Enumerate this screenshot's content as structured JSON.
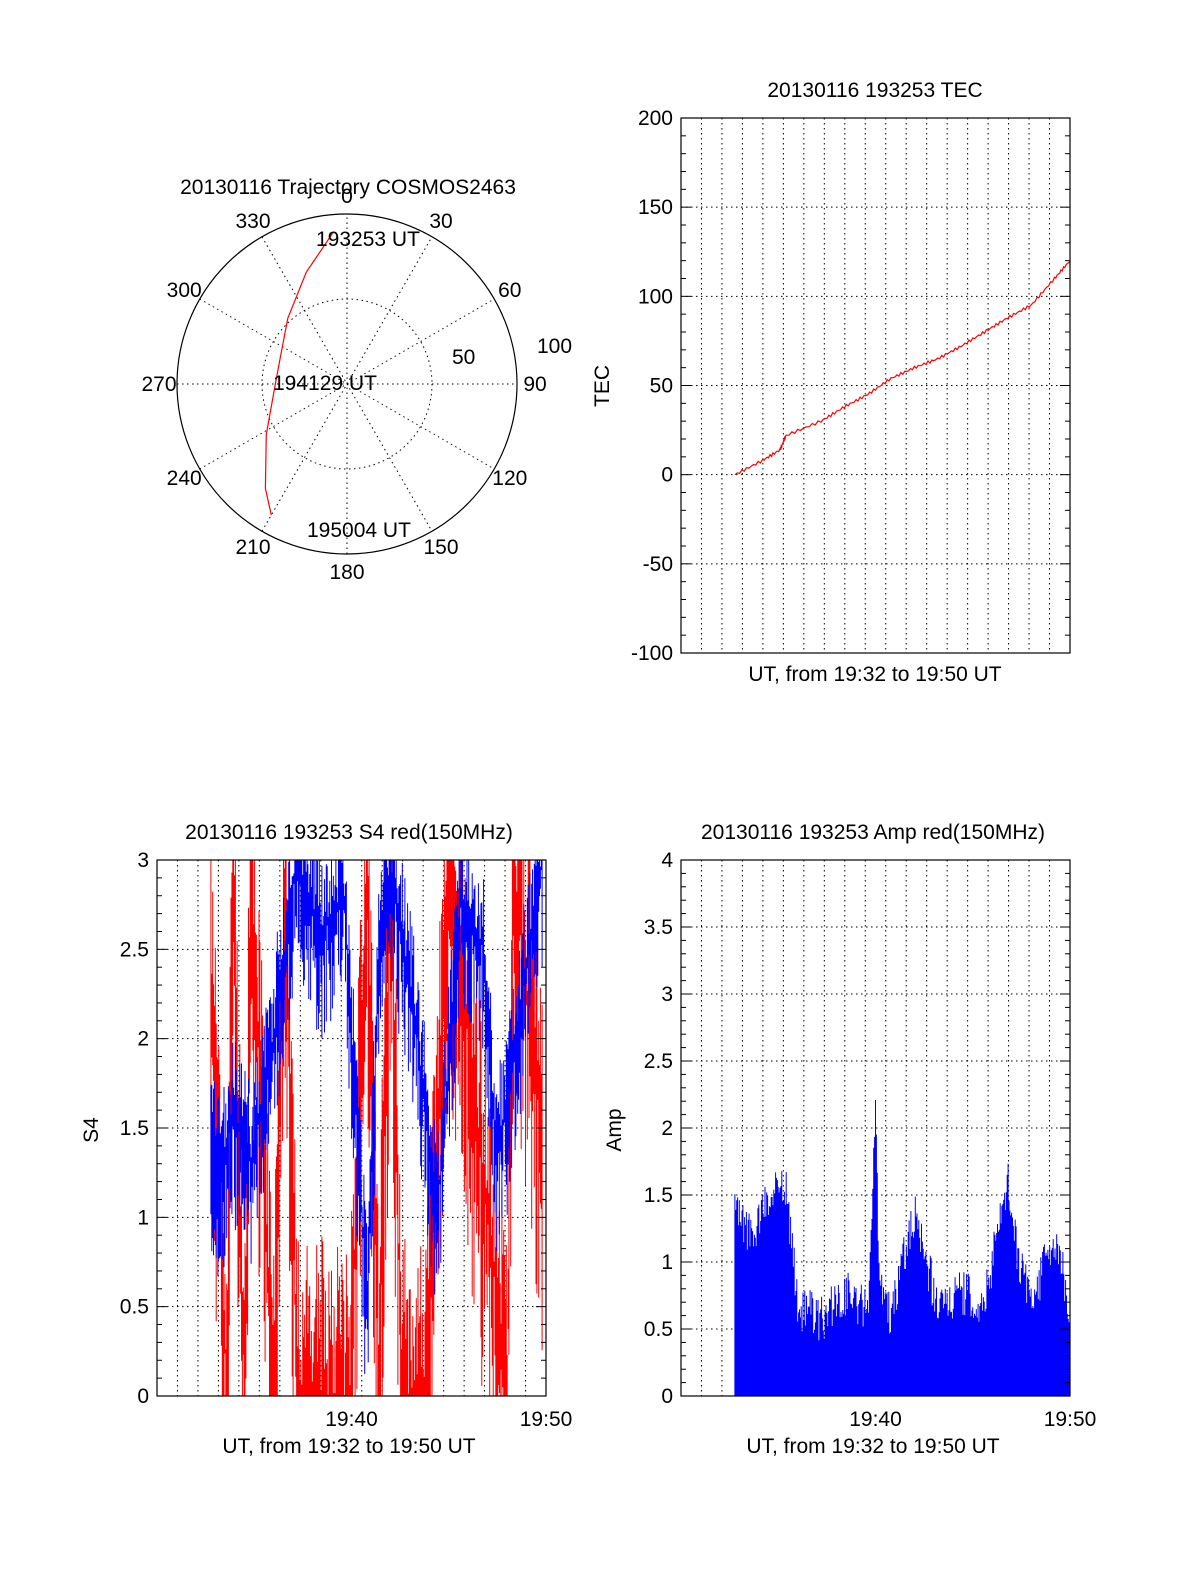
{
  "chart_data": [
    {
      "type": "polar",
      "title": "20130116 Trajectory COSMOS2463",
      "azimuth_labels": [
        "0",
        "30",
        "60",
        "90",
        "120",
        "150",
        "180",
        "210",
        "240",
        "270",
        "300",
        "330"
      ],
      "radial_labels": [
        "50",
        "100"
      ],
      "radial_max": 100,
      "series": [
        {
          "color": "#ff0000",
          "points": [
            {
              "az": 355,
              "zen": 90
            },
            {
              "az": 340,
              "zen": 70
            },
            {
              "az": 318,
              "zen": 52
            },
            {
              "az": 290,
              "zen": 42
            },
            {
              "az": 265,
              "zen": 43
            },
            {
              "az": 238,
              "zen": 56
            },
            {
              "az": 218,
              "zen": 78
            },
            {
              "az": 210,
              "zen": 89
            }
          ]
        }
      ],
      "annotations": [
        "193253 UT",
        "194129 UT",
        "195004 UT"
      ]
    },
    {
      "type": "line",
      "title": "20130116 193253 TEC",
      "xlabel": "UT, from 19:32 to 19:50 UT",
      "ylabel": "TEC",
      "xlim": [
        19.5,
        19.8333
      ],
      "ylim": [
        -100,
        200
      ],
      "yticks": [
        "-100",
        "-50",
        "0",
        "50",
        "100",
        "150",
        "200"
      ],
      "grid": true,
      "series": [
        {
          "color": "#ff0000",
          "x": [
            19.5462,
            19.57,
            19.585,
            19.59,
            19.62,
            19.64,
            19.66,
            19.68,
            19.7,
            19.72,
            19.74,
            19.76,
            19.78,
            19.8,
            19.82,
            19.8333
          ],
          "y": [
            0,
            8,
            14,
            22,
            30,
            38,
            45,
            54,
            60,
            65,
            72,
            80,
            88,
            95,
            110,
            120
          ]
        }
      ]
    },
    {
      "type": "line",
      "title": "20130116 193253 S4 red(150MHz)",
      "xlabel": "UT, from 19:32 to 19:50 UT",
      "ylabel": "S4",
      "xlim": [
        19.5,
        19.8333
      ],
      "ylim": [
        0,
        3
      ],
      "yticks": [
        "0",
        "0.5",
        "1",
        "1.5",
        "2",
        "2.5",
        "3"
      ],
      "xticks": [
        "19:40",
        "19:50"
      ],
      "grid": true,
      "series": [
        {
          "color": "#ff0000",
          "x": [
            19.5462,
            19.56,
            19.565,
            19.575,
            19.58,
            19.6,
            19.61,
            19.62,
            19.665,
            19.68,
            19.69,
            19.7,
            19.71,
            19.73,
            19.75,
            19.8,
            19.805,
            19.83
          ],
          "y": [
            2.4,
            0,
            3,
            0,
            3,
            0,
            3,
            0,
            0,
            3,
            0,
            3,
            0,
            0,
            3,
            0,
            3,
            1.5
          ]
        },
        {
          "color": "#0000ff",
          "x": [
            19.5462,
            19.555,
            19.565,
            19.58,
            19.6,
            19.62,
            19.64,
            19.66,
            19.68,
            19.69,
            19.7,
            19.72,
            19.74,
            19.76,
            19.78,
            19.79,
            19.8,
            19.82,
            19.83
          ],
          "y": [
            1.45,
            1.2,
            1.6,
            1.3,
            2.0,
            3.0,
            2.6,
            2.8,
            0.5,
            2.5,
            2.9,
            2.2,
            1.0,
            2.8,
            2.5,
            1.4,
            1.6,
            2.6,
            3.0
          ]
        }
      ]
    },
    {
      "type": "line",
      "title": "20130116 193253 Amp red(150MHz)",
      "xlabel": "UT, from 19:32 to 19:50 UT",
      "ylabel": "Amp",
      "xlim": [
        19.5,
        19.8333
      ],
      "ylim": [
        0,
        4
      ],
      "yticks": [
        "0",
        "0.5",
        "1",
        "1.5",
        "2",
        "2.5",
        "3",
        "3.5",
        "4"
      ],
      "xticks": [
        "19:40",
        "19:50"
      ],
      "grid": true,
      "series": [
        {
          "color": "#0000ff",
          "x": [
            19.5462,
            19.56,
            19.575,
            19.59,
            19.6,
            19.62,
            19.64,
            19.66,
            19.667,
            19.67,
            19.68,
            19.7,
            19.72,
            19.74,
            19.76,
            19.78,
            19.79,
            19.8,
            19.82,
            19.8333
          ],
          "y": [
            1.25,
            1.0,
            1.3,
            1.4,
            0.5,
            0.4,
            0.6,
            0.45,
            2.0,
            0.6,
            0.4,
            1.2,
            0.5,
            0.6,
            0.5,
            1.45,
            0.8,
            0.5,
            1.0,
            0.5
          ]
        }
      ]
    }
  ]
}
